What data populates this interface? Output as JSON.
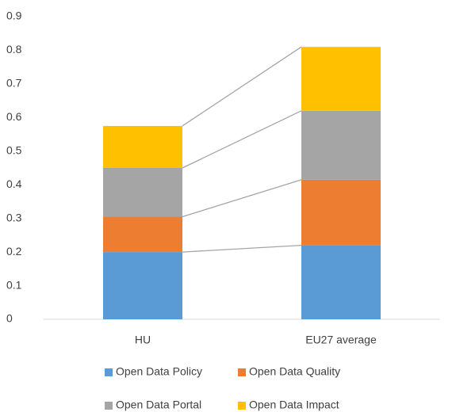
{
  "chart_data": {
    "type": "stacked_bar",
    "categories": [
      "HU",
      "EU27 average"
    ],
    "series": [
      {
        "name": "Open Data Policy",
        "color": "#5b9bd5",
        "values": [
          0.2,
          0.22
        ]
      },
      {
        "name": "Open Data Quality",
        "color": "#ed7d31",
        "values": [
          0.105,
          0.195
        ]
      },
      {
        "name": "Open Data Portal",
        "color": "#a5a5a5",
        "values": [
          0.145,
          0.205
        ]
      },
      {
        "name": "Open Data Impact",
        "color": "#ffc000",
        "values": [
          0.125,
          0.19
        ]
      }
    ],
    "ylim": [
      0,
      0.9
    ],
    "yticks": [
      0,
      0.1,
      0.2,
      0.3,
      0.4,
      0.5,
      0.6,
      0.7,
      0.8,
      0.9
    ],
    "series_lines": true,
    "legend": "bottom"
  }
}
